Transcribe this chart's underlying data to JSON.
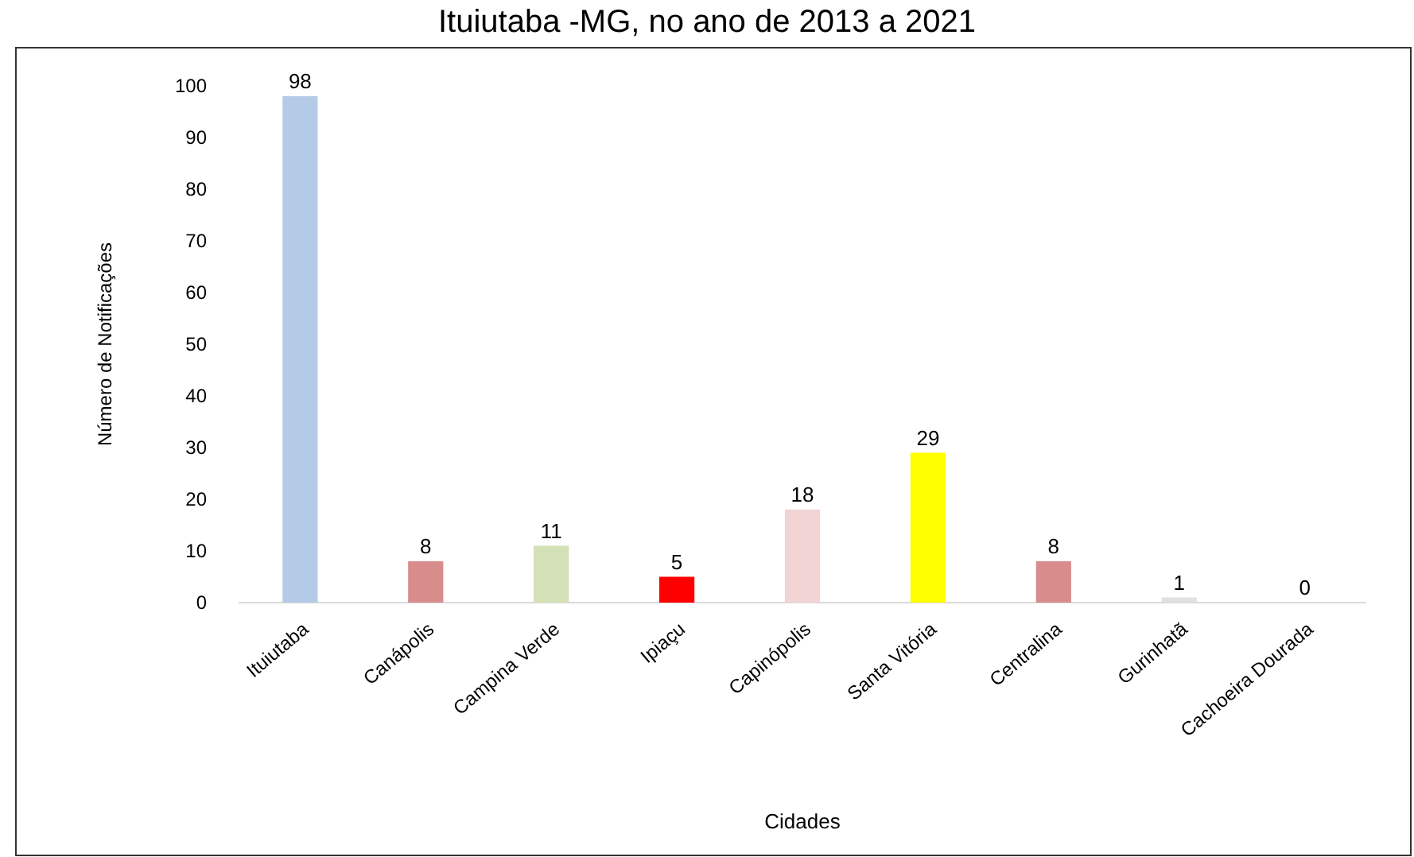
{
  "chart_data": {
    "type": "bar",
    "title": "Ituiutaba -MG, no ano de 2013 a 2021",
    "xlabel": "Cidades",
    "ylabel": "Número de Notificações",
    "categories": [
      "Ituiutaba",
      "Canápolis",
      "Campina Verde",
      "Ipiaçu",
      "Capinópolis",
      "Santa Vitória",
      "Centralina",
      "Gurinhatã",
      "Cachoeira Dourada"
    ],
    "values": [
      98,
      8,
      11,
      5,
      18,
      29,
      8,
      1,
      0
    ],
    "colors": [
      "#b4cbe8",
      "#d98c8c",
      "#d4e0b8",
      "#ff0000",
      "#f2d4d4",
      "#ffff00",
      "#d98c8c",
      "#e0e0e0",
      "#e0e0e0"
    ],
    "ylim": [
      0,
      100
    ],
    "yticks": [
      0,
      10,
      20,
      30,
      40,
      50,
      60,
      70,
      80,
      90,
      100
    ],
    "data_labels": true,
    "grid": false
  }
}
